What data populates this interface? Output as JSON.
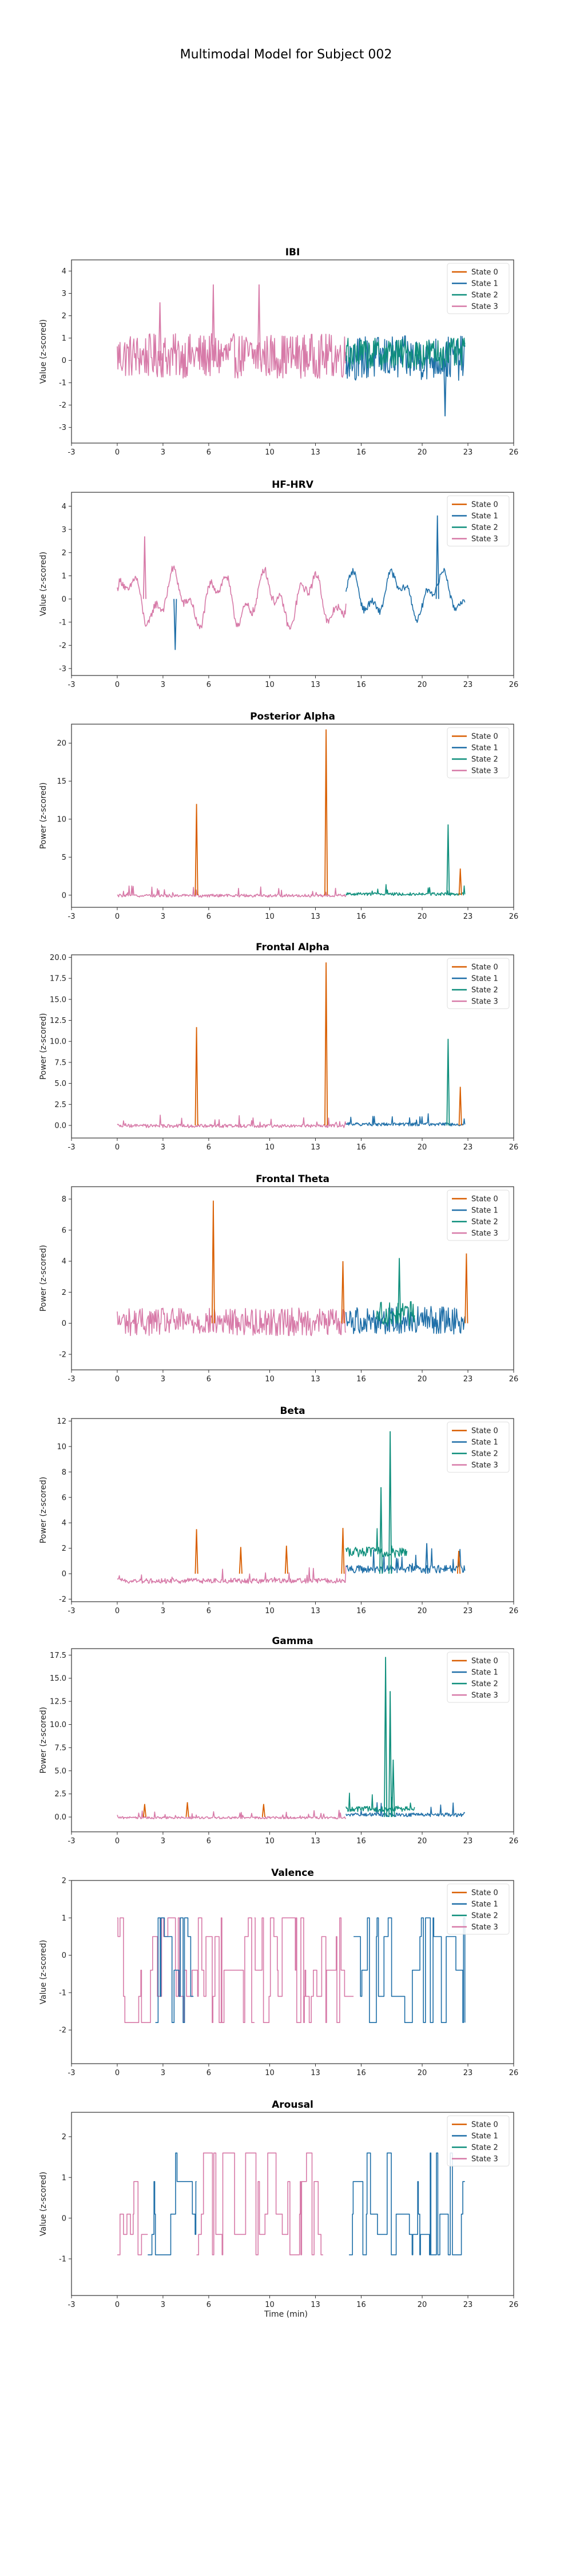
{
  "title": "Multimodal Model for Subject 002",
  "chart_data": {
    "type": "line",
    "shared_xlabel": "Time (min)",
    "xlim": [
      -3,
      26
    ],
    "xticks": [
      -3,
      0,
      3,
      6,
      10,
      13,
      16,
      20,
      23,
      26
    ],
    "legend": {
      "placement": "top-right",
      "entries": [
        {
          "name": "State 0",
          "color": "#d95f02"
        },
        {
          "name": "State 1",
          "color": "#1f6fa8"
        },
        {
          "name": "State 2",
          "color": "#0f8f7c"
        },
        {
          "name": "State 3",
          "color": "#d77aa8"
        }
      ]
    },
    "panels": [
      {
        "title": "IBI",
        "ylabel": "Value (z-scored)",
        "ylim": [
          -3.7,
          4.5
        ],
        "yticks": [
          -3,
          -2,
          -1,
          0,
          1,
          2,
          3,
          4
        ],
        "ytick_labels": [
          "-3",
          "-2",
          "-1",
          "0",
          "1",
          "2",
          "3",
          "4"
        ],
        "signal": "noisy",
        "segments": [
          {
            "t": [
              0,
              15
            ],
            "state": 3,
            "base": 0.2,
            "amp": 1.0
          },
          {
            "t": [
              15,
              22.8
            ],
            "state": 1,
            "base": 0.1,
            "amp": 1.0
          },
          {
            "t": [
              15,
              22.8
            ],
            "state": 2,
            "base": 0.3,
            "amp": 0.7
          }
        ],
        "peaks": [
          [
            2.8,
            2.6,
            3
          ],
          [
            6.3,
            3.4,
            3
          ],
          [
            9.3,
            3.4,
            3
          ],
          [
            21.5,
            -2.5,
            1
          ]
        ]
      },
      {
        "title": "HF-HRV",
        "ylabel": "Value (z-scored)",
        "ylim": [
          -3.3,
          4.6
        ],
        "yticks": [
          -3,
          -2,
          -1,
          0,
          1,
          2,
          3,
          4
        ],
        "ytick_labels": [
          "-3",
          "-2",
          "-1",
          "0",
          "1",
          "2",
          "3",
          "4"
        ],
        "signal": "smooth",
        "segments": [
          {
            "t": [
              0,
              15
            ],
            "state": 3,
            "base": 0.0,
            "amp": 1.2
          },
          {
            "t": [
              15,
              22.8
            ],
            "state": 1,
            "base": 0.2,
            "amp": 1.0
          }
        ],
        "peaks": [
          [
            1.8,
            2.7,
            3
          ],
          [
            3.8,
            -2.2,
            1
          ],
          [
            21.0,
            3.6,
            1
          ]
        ]
      },
      {
        "title": "Posterior Alpha",
        "ylabel": "Power (z-scored)",
        "ylim": [
          -1.6,
          22.5
        ],
        "yticks": [
          0,
          5,
          10,
          15,
          20
        ],
        "ytick_labels": [
          "0",
          "5",
          "10",
          "15",
          "20"
        ],
        "signal": "spiky",
        "segments": [
          {
            "t": [
              0,
              15
            ],
            "state": 3,
            "base": -0.1,
            "amp": 0.4
          },
          {
            "t": [
              15,
              22.8
            ],
            "state": 2,
            "base": 0.1,
            "amp": 0.4
          }
        ],
        "peaks": [
          [
            5.2,
            12.0,
            0
          ],
          [
            13.7,
            21.8,
            0
          ],
          [
            21.7,
            9.3,
            2
          ],
          [
            22.5,
            3.5,
            0
          ]
        ]
      },
      {
        "title": "Frontal Alpha",
        "ylabel": "Power (z-scored)",
        "ylim": [
          -1.5,
          20.3
        ],
        "yticks": [
          0,
          2.5,
          5,
          7.5,
          10,
          12.5,
          15,
          17.5,
          20
        ],
        "ytick_labels": [
          "0.0",
          "2.5",
          "5.0",
          "7.5",
          "10.0",
          "12.5",
          "15.0",
          "17.5",
          "20.0"
        ],
        "signal": "spiky",
        "segments": [
          {
            "t": [
              0,
              15
            ],
            "state": 3,
            "base": -0.1,
            "amp": 0.4
          },
          {
            "t": [
              15,
              22.8
            ],
            "state": 1,
            "base": 0.1,
            "amp": 0.4
          }
        ],
        "peaks": [
          [
            5.2,
            11.7,
            0
          ],
          [
            13.7,
            19.4,
            0
          ],
          [
            21.7,
            10.3,
            2
          ],
          [
            22.5,
            4.6,
            0
          ]
        ]
      },
      {
        "title": "Frontal Theta",
        "ylabel": "Power (z-scored)",
        "ylim": [
          -3.0,
          8.8
        ],
        "yticks": [
          -2,
          0,
          2,
          4,
          6,
          8
        ],
        "ytick_labels": [
          "-2",
          "0",
          "2",
          "4",
          "6",
          "8"
        ],
        "signal": "noisy",
        "segments": [
          {
            "t": [
              0,
              15
            ],
            "state": 3,
            "base": 0.1,
            "amp": 0.9
          },
          {
            "t": [
              15,
              22.8
            ],
            "state": 1,
            "base": 0.2,
            "amp": 0.9
          },
          {
            "t": [
              17,
              19.5
            ],
            "state": 2,
            "base": 0.6,
            "amp": 0.8
          }
        ],
        "peaks": [
          [
            6.3,
            7.9,
            0
          ],
          [
            14.8,
            4.0,
            0
          ],
          [
            18.5,
            4.2,
            2
          ],
          [
            22.9,
            4.5,
            0
          ]
        ]
      },
      {
        "title": "Beta",
        "ylabel": "Power (z-scored)",
        "ylim": [
          -2.2,
          12.2
        ],
        "yticks": [
          -2,
          0,
          2,
          4,
          6,
          8,
          10,
          12
        ],
        "ytick_labels": [
          "-2",
          "0",
          "2",
          "4",
          "6",
          "8",
          "10",
          "12"
        ],
        "signal": "spiky",
        "segments": [
          {
            "t": [
              0,
              15
            ],
            "state": 3,
            "base": -0.6,
            "amp": 0.4
          },
          {
            "t": [
              15,
              22.8
            ],
            "state": 1,
            "base": 0.3,
            "amp": 0.6
          },
          {
            "t": [
              15,
              19
            ],
            "state": 2,
            "base": 1.6,
            "amp": 0.8
          }
        ],
        "peaks": [
          [
            5.2,
            3.5,
            0
          ],
          [
            8.1,
            2.1,
            0
          ],
          [
            11.1,
            2.2,
            0
          ],
          [
            14.8,
            3.6,
            0
          ],
          [
            17.3,
            6.8,
            2
          ],
          [
            17.9,
            11.2,
            2
          ],
          [
            20.3,
            2.4,
            1
          ],
          [
            22.4,
            1.8,
            0
          ]
        ]
      },
      {
        "title": "Gamma",
        "ylabel": "Power (z-scored)",
        "ylim": [
          -1.6,
          18.2
        ],
        "yticks": [
          0,
          2.5,
          5,
          7.5,
          10,
          12.5,
          15,
          17.5
        ],
        "ytick_labels": [
          "0.0",
          "2.5",
          "5.0",
          "7.5",
          "10.0",
          "12.5",
          "15.0",
          "17.5"
        ],
        "signal": "spiky",
        "segments": [
          {
            "t": [
              0,
              15
            ],
            "state": 3,
            "base": -0.1,
            "amp": 0.25
          },
          {
            "t": [
              15,
              22.8
            ],
            "state": 1,
            "base": 0.2,
            "amp": 0.4
          },
          {
            "t": [
              15,
              19.5
            ],
            "state": 2,
            "base": 0.8,
            "amp": 0.6
          }
        ],
        "peaks": [
          [
            1.8,
            1.4,
            0
          ],
          [
            4.6,
            1.6,
            0
          ],
          [
            9.6,
            1.4,
            0
          ],
          [
            17.6,
            17.3,
            2
          ],
          [
            17.9,
            13.6,
            2
          ],
          [
            18.1,
            6.2,
            2
          ]
        ]
      },
      {
        "title": "Valence",
        "ylabel": "Value (z-scored)",
        "ylim": [
          -2.9,
          2.0
        ],
        "yticks": [
          -2,
          -1,
          0,
          1,
          2
        ],
        "ytick_labels": [
          "-2",
          "-1",
          "0",
          "1",
          "2"
        ],
        "signal": "step",
        "levels": [
          -1.8,
          -1.1,
          -0.4,
          0.5,
          1.0
        ],
        "segments": [
          {
            "t": [
              0,
              5
            ],
            "state": 3
          },
          {
            "t": [
              2.5,
              5
            ],
            "state": 1
          },
          {
            "t": [
              5,
              9
            ],
            "state": 3
          },
          {
            "t": [
              9,
              15.5
            ],
            "state": 3
          },
          {
            "t": [
              15.5,
              22.8
            ],
            "state": 1
          }
        ],
        "peaks": []
      },
      {
        "title": "Arousal",
        "ylabel": "Value (z-scored)",
        "ylim": [
          -1.9,
          2.6
        ],
        "yticks": [
          -1,
          0,
          1,
          2
        ],
        "ytick_labels": [
          "-1",
          "0",
          "1",
          "2"
        ],
        "signal": "step",
        "levels": [
          -0.9,
          -0.4,
          0.1,
          0.9,
          1.6
        ],
        "segments": [
          {
            "t": [
              0,
              2
            ],
            "state": 3
          },
          {
            "t": [
              2,
              5.2
            ],
            "state": 1
          },
          {
            "t": [
              5.2,
              13.5
            ],
            "state": 3
          },
          {
            "t": [
              15.2,
              22.8
            ],
            "state": 1
          }
        ],
        "peaks": []
      }
    ]
  }
}
